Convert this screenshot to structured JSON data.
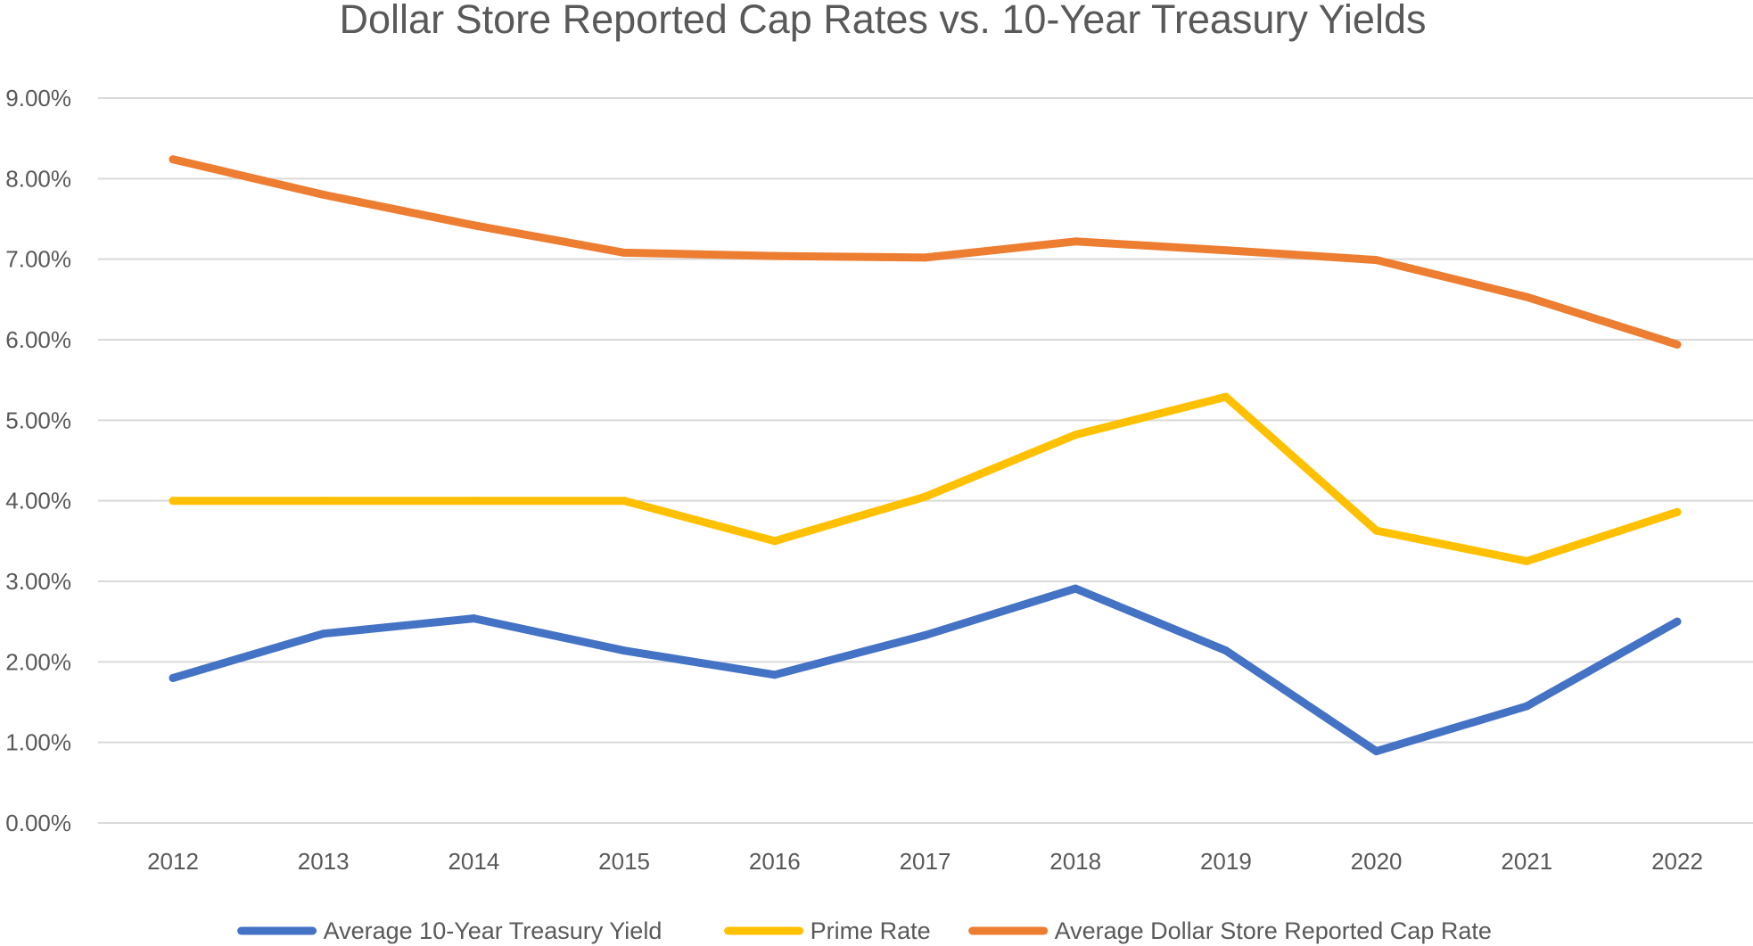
{
  "chart_data": {
    "type": "line",
    "title": "Dollar Store Reported Cap Rates vs. 10-Year Treasury Yields",
    "xlabel": "",
    "ylabel": "",
    "categories": [
      "2012",
      "2013",
      "2014",
      "2015",
      "2016",
      "2017",
      "2018",
      "2019",
      "2020",
      "2021",
      "2022"
    ],
    "ylim": [
      0,
      9
    ],
    "yticks": [
      0,
      1,
      2,
      3,
      4,
      5,
      6,
      7,
      8,
      9
    ],
    "ytick_labels": [
      "0.00%",
      "1.00%",
      "2.00%",
      "3.00%",
      "4.00%",
      "5.00%",
      "6.00%",
      "7.00%",
      "8.00%",
      "9.00%"
    ],
    "grid": true,
    "legend_position": "bottom",
    "series": [
      {
        "name": "Average 10-Year Treasury Yield",
        "color": "#4472c4",
        "values": [
          1.8,
          2.35,
          2.54,
          2.14,
          1.84,
          2.33,
          2.91,
          2.14,
          0.89,
          1.45,
          2.5
        ]
      },
      {
        "name": "Prime Rate",
        "color": "#ffc000",
        "values": [
          4.0,
          4.0,
          4.0,
          4.0,
          3.5,
          4.05,
          4.82,
          5.29,
          3.63,
          3.25,
          3.86
        ]
      },
      {
        "name": "Average Dollar Store Reported Cap Rate",
        "color": "#ed7d31",
        "values": [
          8.24,
          7.8,
          7.42,
          7.08,
          7.04,
          7.02,
          7.22,
          7.11,
          6.99,
          6.53,
          5.94
        ]
      }
    ]
  }
}
